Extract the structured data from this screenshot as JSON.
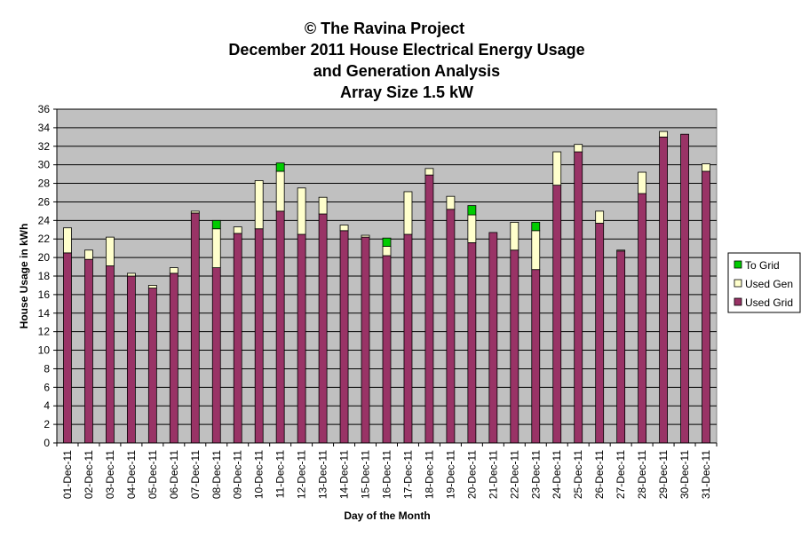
{
  "chart_data": {
    "type": "bar",
    "stacked": true,
    "title_lines": [
      "© The Ravina Project",
      "December 2011 House Electrical Energy Usage",
      "and Generation Analysis",
      "Array Size 1.5 kW"
    ],
    "xlabel": "Day of the Month",
    "ylabel": "House Usage in kWh",
    "ylim": [
      0,
      36
    ],
    "yticks": [
      0,
      2,
      4,
      6,
      8,
      10,
      12,
      14,
      16,
      18,
      20,
      22,
      24,
      26,
      28,
      30,
      32,
      34,
      36
    ],
    "grid": true,
    "legend_position": "right",
    "categories": [
      "01-Dec-11",
      "02-Dec-11",
      "03-Dec-11",
      "04-Dec-11",
      "05-Dec-11",
      "06-Dec-11",
      "07-Dec-11",
      "08-Dec-11",
      "09-Dec-11",
      "10-Dec-11",
      "11-Dec-11",
      "12-Dec-11",
      "13-Dec-11",
      "14-Dec-11",
      "15-Dec-11",
      "16-Dec-11",
      "17-Dec-11",
      "18-Dec-11",
      "19-Dec-11",
      "20-Dec-11",
      "21-Dec-11",
      "22-Dec-11",
      "23-Dec-11",
      "24-Dec-11",
      "25-Dec-11",
      "26-Dec-11",
      "27-Dec-11",
      "28-Dec-11",
      "29-Dec-11",
      "30-Dec-11",
      "31-Dec-11"
    ],
    "series": [
      {
        "name": "Used Grid",
        "color": "#993366",
        "values": [
          20.5,
          19.8,
          19.1,
          18.0,
          16.7,
          18.3,
          24.8,
          18.9,
          22.6,
          23.1,
          25.0,
          22.5,
          24.7,
          22.9,
          22.2,
          20.2,
          22.5,
          28.9,
          25.2,
          21.6,
          22.7,
          20.8,
          18.7,
          27.8,
          31.4,
          23.7,
          20.7,
          26.9,
          33.0,
          33.3,
          29.3
        ]
      },
      {
        "name": "Used Gen",
        "color": "#ffffcc",
        "values": [
          2.7,
          1.0,
          3.1,
          0.3,
          0.3,
          0.6,
          0.2,
          4.2,
          0.7,
          5.2,
          4.3,
          5.0,
          1.8,
          0.6,
          0.2,
          1.0,
          4.6,
          0.7,
          1.4,
          3.0,
          0.0,
          3.0,
          4.2,
          3.6,
          0.8,
          1.3,
          0.1,
          2.3,
          0.6,
          0.0,
          0.8
        ]
      },
      {
        "name": "To Grid",
        "color": "#00cc00",
        "values": [
          0.0,
          0.0,
          0.0,
          0.0,
          0.0,
          0.0,
          0.0,
          0.9,
          0.0,
          0.0,
          0.9,
          0.0,
          0.0,
          0.0,
          0.0,
          0.9,
          0.0,
          0.0,
          0.0,
          1.0,
          0.0,
          0.0,
          0.9,
          0.0,
          0.0,
          0.0,
          0.0,
          0.0,
          0.0,
          0.0,
          0.0
        ]
      }
    ],
    "legend_order": [
      "To Grid",
      "Used Gen",
      "Used Grid"
    ],
    "plot_background": "#c0c0c0"
  }
}
